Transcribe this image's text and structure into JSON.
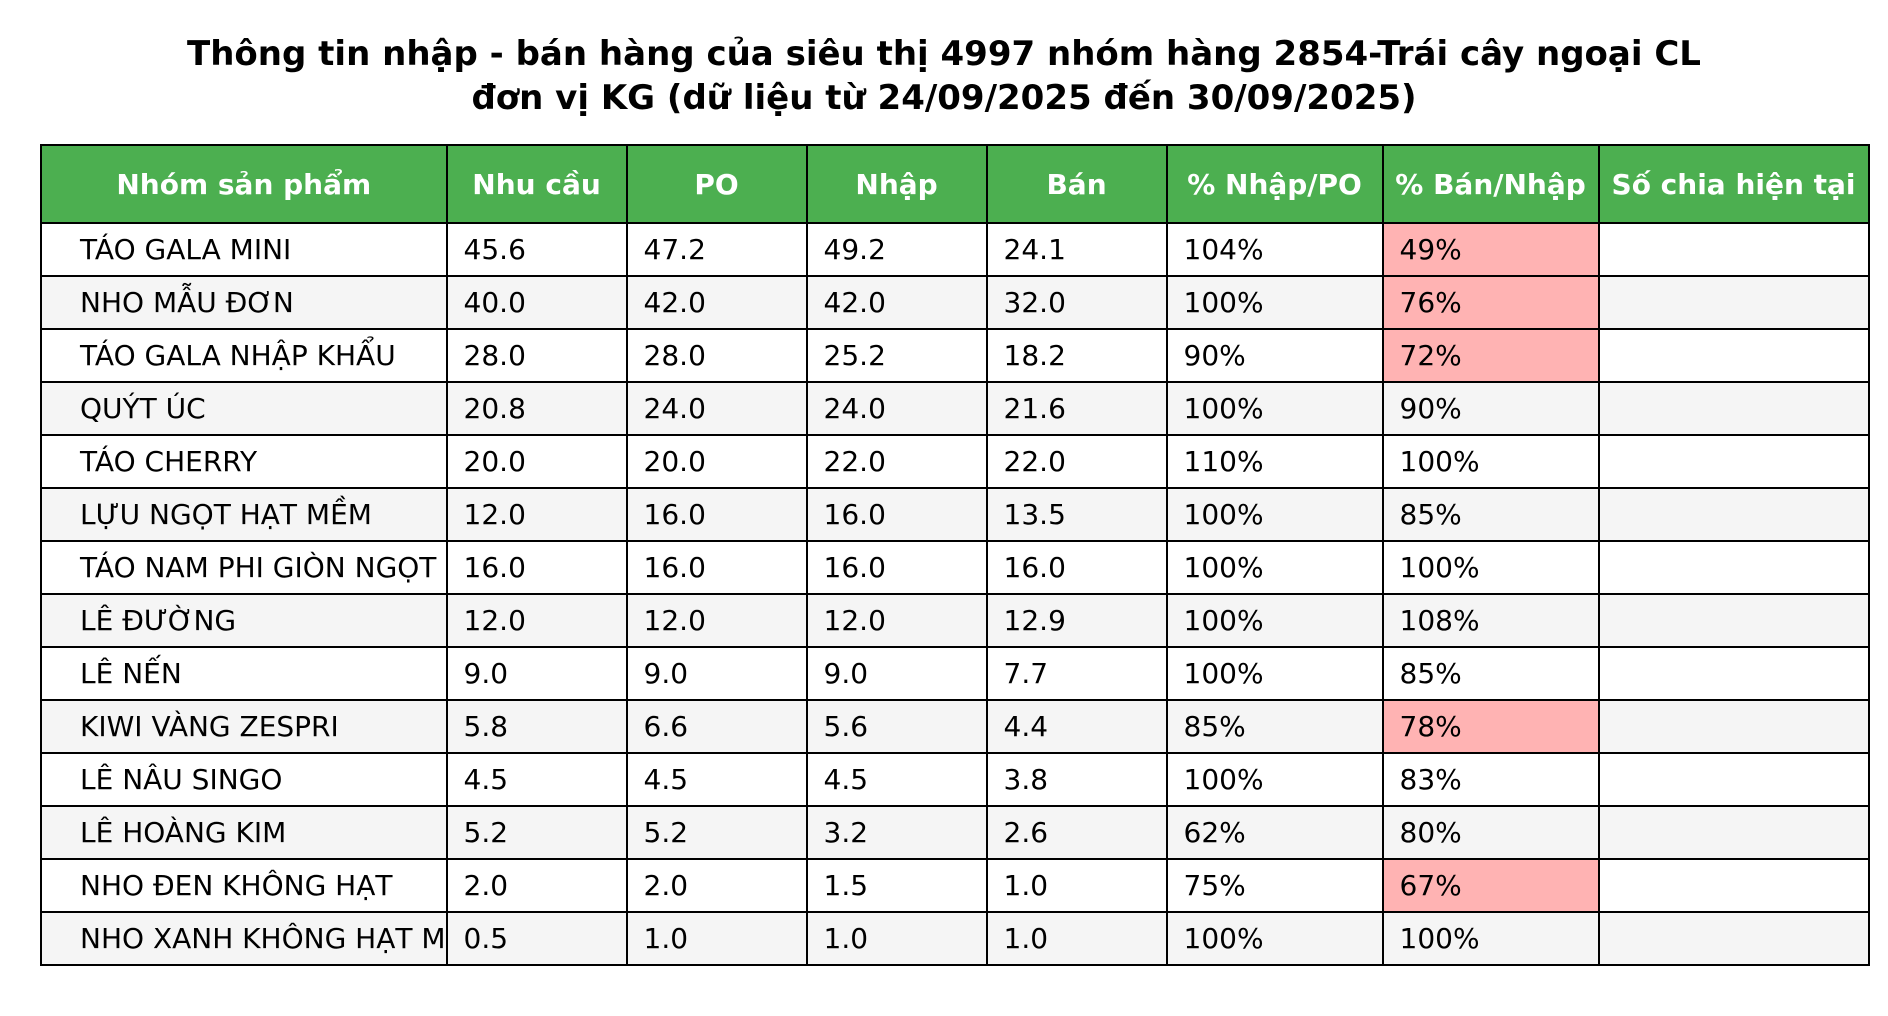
{
  "colors": {
    "header_bg": "#4caf50",
    "header_text": "#ffffff",
    "row_alt_bg": "#f5f5f5",
    "highlight_bg": "#ffb3b3"
  },
  "chart_data": {
    "type": "table",
    "title_lines": [
      "Thông tin nhập - bán hàng của siêu thị 4997 nhóm hàng 2854-Trái cây ngoại CL",
      "đơn vị KG (dữ liệu từ 24/09/2025 đến 30/09/2025)"
    ],
    "columns": [
      "Nhóm sản phẩm",
      "Nhu cầu",
      "PO",
      "Nhập",
      "Bán",
      "% Nhập/PO",
      "% Bán/Nhập",
      "Số chia hiện tại"
    ],
    "rows": [
      {
        "cells": [
          "TÁO GALA MINI",
          "45.6",
          "47.2",
          "49.2",
          "24.1",
          "104%",
          "49%",
          ""
        ],
        "highlight": true
      },
      {
        "cells": [
          "NHO MẪU ĐƠN",
          "40.0",
          "42.0",
          "42.0",
          "32.0",
          "100%",
          "76%",
          ""
        ],
        "highlight": true
      },
      {
        "cells": [
          "TÁO GALA NHẬP KHẨU",
          "28.0",
          "28.0",
          "25.2",
          "18.2",
          "90%",
          "72%",
          ""
        ],
        "highlight": true
      },
      {
        "cells": [
          "QUÝT ÚC",
          "20.8",
          "24.0",
          "24.0",
          "21.6",
          "100%",
          "90%",
          ""
        ],
        "highlight": false
      },
      {
        "cells": [
          "TÁO CHERRY",
          "20.0",
          "20.0",
          "22.0",
          "22.0",
          "110%",
          "100%",
          ""
        ],
        "highlight": false
      },
      {
        "cells": [
          "LỰU NGỌT HẠT MỀM",
          "12.0",
          "16.0",
          "16.0",
          "13.5",
          "100%",
          "85%",
          ""
        ],
        "highlight": false
      },
      {
        "cells": [
          "TÁO NAM PHI GIÒN NGỌT",
          "16.0",
          "16.0",
          "16.0",
          "16.0",
          "100%",
          "100%",
          ""
        ],
        "highlight": false
      },
      {
        "cells": [
          "LÊ ĐƯỜNG",
          "12.0",
          "12.0",
          "12.0",
          "12.9",
          "100%",
          "108%",
          ""
        ],
        "highlight": false
      },
      {
        "cells": [
          "LÊ NẾN",
          "9.0",
          "9.0",
          "9.0",
          "7.7",
          "100%",
          "85%",
          ""
        ],
        "highlight": false
      },
      {
        "cells": [
          "KIWI VÀNG ZESPRI",
          "5.8",
          "6.6",
          "5.6",
          "4.4",
          "85%",
          "78%",
          ""
        ],
        "highlight": true
      },
      {
        "cells": [
          "LÊ NÂU SINGO",
          "4.5",
          "4.5",
          "4.5",
          "3.8",
          "100%",
          "83%",
          ""
        ],
        "highlight": false
      },
      {
        "cells": [
          "LÊ HOÀNG KIM",
          "5.2",
          "5.2",
          "3.2",
          "2.6",
          "62%",
          "80%",
          ""
        ],
        "highlight": false
      },
      {
        "cells": [
          "NHO ĐEN KHÔNG HẠT",
          "2.0",
          "2.0",
          "1.5",
          "1.0",
          "75%",
          "67%",
          ""
        ],
        "highlight": true
      },
      {
        "cells": [
          "NHO XANH KHÔNG HẠT M",
          "0.5",
          "1.0",
          "1.0",
          "1.0",
          "100%",
          "100%",
          ""
        ],
        "highlight": false
      }
    ]
  }
}
